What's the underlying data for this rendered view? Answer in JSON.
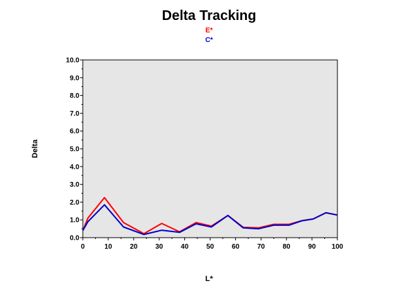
{
  "colors": {
    "plot_bg": "#e6e6e6",
    "series_e": "#ff0000",
    "series_c": "#0000cc"
  },
  "chart_data": {
    "type": "line",
    "title": "Delta Tracking",
    "xlabel": "L*",
    "ylabel": "Delta",
    "xlim": [
      0,
      100
    ],
    "ylim": [
      0,
      10
    ],
    "grid": false,
    "legend_placement": "top-center",
    "x_ticks": [
      "0",
      "10",
      "20",
      "30",
      "40",
      "50",
      "60",
      "70",
      "80",
      "90",
      "100"
    ],
    "y_ticks": [
      "0.0",
      "1.0",
      "2.0",
      "3.0",
      "4.0",
      "5.0",
      "6.0",
      "7.0",
      "8.0",
      "9.0",
      "10.0"
    ],
    "x": [
      0,
      2,
      8.5,
      16,
      24,
      31,
      38,
      44.5,
      50.5,
      57,
      63,
      69,
      75,
      81,
      86,
      90.5,
      95.5,
      100
    ],
    "series": [
      {
        "name": "E*",
        "color": "#ff0000",
        "values": [
          0.4,
          1.1,
          2.25,
          0.85,
          0.22,
          0.8,
          0.33,
          0.85,
          0.65,
          1.25,
          0.58,
          0.55,
          0.75,
          0.75,
          0.95,
          1.05,
          1.4,
          1.27
        ]
      },
      {
        "name": "C*",
        "color": "#0000cc",
        "values": [
          0.4,
          0.9,
          1.85,
          0.6,
          0.18,
          0.42,
          0.3,
          0.78,
          0.6,
          1.25,
          0.55,
          0.5,
          0.7,
          0.7,
          0.95,
          1.05,
          1.4,
          1.27
        ]
      }
    ]
  }
}
